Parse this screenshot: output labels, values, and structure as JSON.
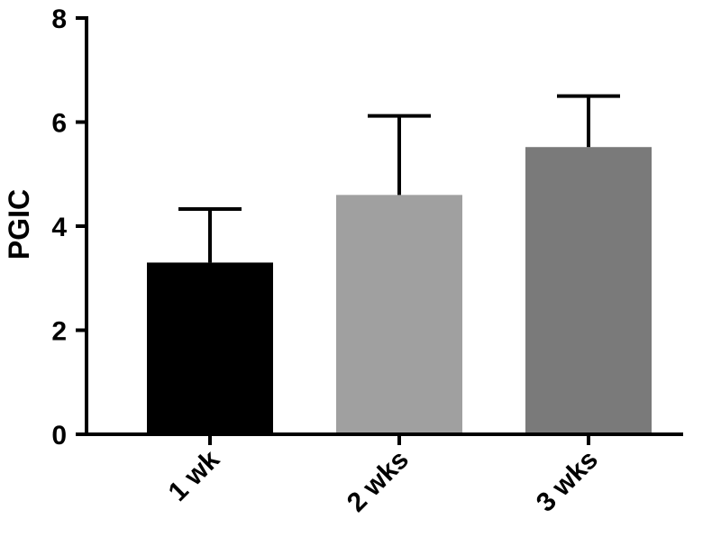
{
  "chart_data": {
    "type": "bar",
    "categories": [
      "1 wk",
      "2 wks",
      "3 wks"
    ],
    "values": [
      3.3,
      4.6,
      5.52
    ],
    "error_upper": [
      1.03,
      1.52,
      0.98
    ],
    "bar_colors": [
      "#000000",
      "#a0a0a0",
      "#7a7a7a"
    ],
    "ylabel": "PGIC",
    "xlabel": "",
    "ylim": [
      0,
      8
    ],
    "yticks": [
      "0",
      "2",
      "4",
      "6",
      "8"
    ],
    "grid": false,
    "legend": "none"
  }
}
